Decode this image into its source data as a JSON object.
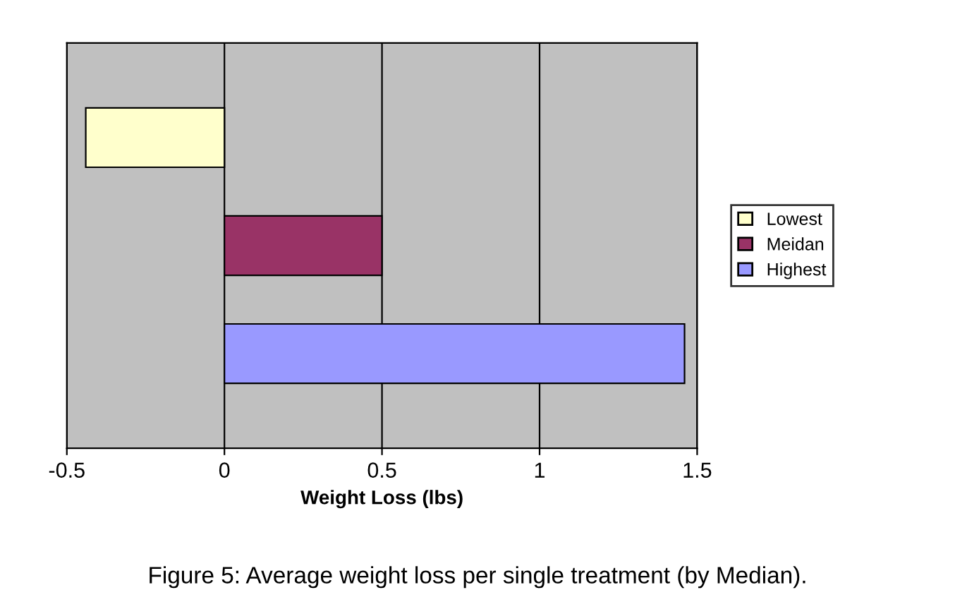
{
  "chart_data": {
    "type": "bar",
    "orientation": "horizontal",
    "categories": [
      null
    ],
    "series": [
      {
        "name": "Highest",
        "color": "#9999ff",
        "values": [
          1.46
        ]
      },
      {
        "name": "Meidan",
        "color": "#993366",
        "values": [
          0.5
        ]
      },
      {
        "name": "Lowest",
        "color": "#ffffcc",
        "values": [
          -0.44
        ]
      }
    ],
    "xlim": [
      -0.5,
      1.5
    ],
    "xticks": [
      -0.5,
      0,
      0.5,
      1,
      1.5
    ],
    "xlabel": "Weight Loss (lbs)",
    "grid": "x",
    "legend": "right",
    "tick_labels": "x",
    "annotations": [
      "Figure 5: Average weight loss per single treatment (by Median)."
    ]
  }
}
